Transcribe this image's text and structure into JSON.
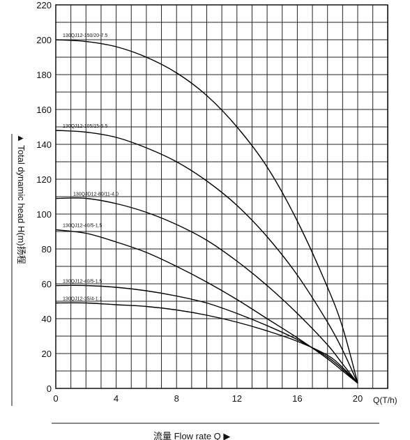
{
  "chart_data": {
    "type": "line",
    "x_unit_label": "Q(T/h)",
    "xlabel": "流量 Flow rate Q ▶",
    "ylabel": "▲ Total dynamic head H(m)扬程",
    "xlim": [
      0,
      20
    ],
    "ylim": [
      0,
      220
    ],
    "x_ticks": [
      0,
      4,
      8,
      12,
      16,
      20
    ],
    "y_ticks": [
      0,
      20,
      40,
      60,
      80,
      100,
      120,
      140,
      160,
      180,
      200,
      220
    ],
    "grid": true,
    "series": [
      {
        "name": "130QJ12-150/20-7.5",
        "x": [
          0,
          2,
          4,
          6,
          8,
          10,
          12,
          14,
          16,
          18,
          19,
          20
        ],
        "y": [
          200,
          199,
          196,
          190,
          181,
          168,
          150,
          127,
          96,
          58,
          35,
          3
        ]
      },
      {
        "name": "130QJ12-105/15-5.5",
        "x": [
          0,
          2,
          4,
          6,
          8,
          10,
          12,
          14,
          16,
          18,
          19,
          20
        ],
        "y": [
          148,
          147,
          144,
          138,
          130,
          119,
          105,
          87,
          65,
          38,
          22,
          3
        ]
      },
      {
        "name": "130QJD12-80/11-4.0",
        "x": [
          0,
          2,
          4,
          6,
          8,
          10,
          12,
          14,
          16,
          18,
          19,
          20
        ],
        "y": [
          109,
          109,
          106,
          101,
          94,
          85,
          73,
          59,
          43,
          25,
          14,
          3
        ]
      },
      {
        "name": "130QJ12-40/5-1.5",
        "x": [
          0,
          2,
          4,
          6,
          8,
          10,
          12,
          14,
          16,
          18,
          19,
          20
        ],
        "y": [
          91,
          89,
          84,
          78,
          70,
          61,
          51,
          40,
          29,
          17,
          10,
          3
        ]
      },
      {
        "name": "130QJ12-40/5-1.5",
        "x": [
          0,
          2,
          4,
          6,
          8,
          10,
          12,
          14,
          16,
          18,
          19,
          20
        ],
        "y": [
          59,
          59,
          58,
          56,
          53,
          49,
          43,
          36,
          28,
          18,
          11,
          3
        ]
      },
      {
        "name": "130QJ12-35/4-1.1",
        "x": [
          0,
          2,
          4,
          6,
          8,
          10,
          12,
          14,
          16,
          18,
          19,
          20
        ],
        "y": [
          49,
          49,
          48,
          47,
          45,
          42,
          38,
          33,
          27,
          19,
          12,
          3
        ]
      }
    ]
  }
}
